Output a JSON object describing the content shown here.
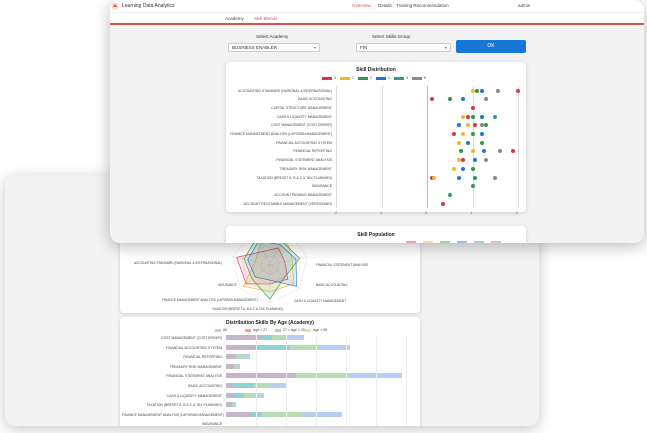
{
  "app": {
    "title": "Learning Data Analytics",
    "user": "admin"
  },
  "nav": [
    {
      "label": "Overview",
      "active": true
    },
    {
      "label": "Details",
      "active": false
    },
    {
      "label": "Training Recommendation",
      "active": false
    }
  ],
  "tabs": [
    {
      "label": "Academy",
      "active": false
    },
    {
      "label": "Skill Blends",
      "active": true
    }
  ],
  "filters": {
    "academy_label": "Select Academy",
    "academy_value": "BUSINESS ENABLER",
    "skills_group_label": "Select Skills Group",
    "skills_group_value": "FIN",
    "ok_label": "OK"
  },
  "skill_distribution": {
    "chart_data": {
      "type": "scatter",
      "title": "Skill Distribution",
      "legend": [
        "0",
        "1",
        "2",
        "3",
        "4",
        "5"
      ],
      "series_colors": [
        "#d9354a",
        "#f1b827",
        "#2e9a49",
        "#1f77c9",
        "#2a9d8f",
        "#8a8a8a"
      ],
      "x_ticks": [
        "-2",
        "-1",
        "0",
        "1",
        "2"
      ],
      "xlim": [
        -2,
        2
      ],
      "categories": [
        "ACCOUNTING STANDARD (NASIONAL & INTERNASIONAL)",
        "BASIC ACCOUNTING",
        "CAPITAL STRUCTURE MANAGEMENT",
        "CASH & LIQUIDITY MANAGEMENT",
        "COST MANAGEMENT (COST DRIVER)",
        "FINANCE MANAGEMENT ANALYSIS (LAPORAN MANAGEMENT)",
        "FINANCIAL ACCOUNTING SYSTEM",
        "FINANCIAL REPORTING",
        "FINANCIAL STATEMENT ANALYSIS",
        "TREASURY RISK MANAGEMENT",
        "TAXATION (BREVET A, B & C & TAX PLANNING)",
        "INSURANCE",
        "ACCOUNT PAYABLE MANAGEMENT",
        "ACCOUNT RECEIVABLE MANAGEMENT (VERSIONING)"
      ],
      "points": [
        {
          "row": 0,
          "x": 1.0,
          "s": 1
        },
        {
          "row": 0,
          "x": 1.1,
          "s": 2
        },
        {
          "row": 0,
          "x": 1.2,
          "s": 3
        },
        {
          "row": 0,
          "x": 1.55,
          "s": 5
        },
        {
          "row": 0,
          "x": 2.0,
          "s": 0
        },
        {
          "row": 1,
          "x": 0.1,
          "s": 0
        },
        {
          "row": 1,
          "x": 0.5,
          "s": 2
        },
        {
          "row": 1,
          "x": 0.8,
          "s": 3
        },
        {
          "row": 1,
          "x": 1.3,
          "s": 5
        },
        {
          "row": 2,
          "x": 1.0,
          "s": 0
        },
        {
          "row": 3,
          "x": 0.8,
          "s": 1
        },
        {
          "row": 3,
          "x": 0.9,
          "s": 0
        },
        {
          "row": 3,
          "x": 1.0,
          "s": 2
        },
        {
          "row": 3,
          "x": 1.2,
          "s": 3
        },
        {
          "row": 3,
          "x": 1.5,
          "s": 4
        },
        {
          "row": 4,
          "x": 0.7,
          "s": 3
        },
        {
          "row": 4,
          "x": 0.9,
          "s": 1
        },
        {
          "row": 4,
          "x": 1.05,
          "s": 0
        },
        {
          "row": 4,
          "x": 1.2,
          "s": 5
        },
        {
          "row": 4,
          "x": 1.3,
          "s": 2
        },
        {
          "row": 5,
          "x": 0.6,
          "s": 0
        },
        {
          "row": 5,
          "x": 0.8,
          "s": 1
        },
        {
          "row": 5,
          "x": 1.0,
          "s": 2
        },
        {
          "row": 5,
          "x": 1.2,
          "s": 3
        },
        {
          "row": 6,
          "x": 0.7,
          "s": 1
        },
        {
          "row": 6,
          "x": 0.9,
          "s": 3
        },
        {
          "row": 6,
          "x": 1.2,
          "s": 2
        },
        {
          "row": 7,
          "x": 0.75,
          "s": 2
        },
        {
          "row": 7,
          "x": 1.0,
          "s": 1
        },
        {
          "row": 7,
          "x": 1.25,
          "s": 3
        },
        {
          "row": 7,
          "x": 1.6,
          "s": 5
        },
        {
          "row": 7,
          "x": 1.9,
          "s": 0
        },
        {
          "row": 8,
          "x": 0.7,
          "s": 1
        },
        {
          "row": 8,
          "x": 0.8,
          "s": 0
        },
        {
          "row": 8,
          "x": 1.05,
          "s": 3
        },
        {
          "row": 8,
          "x": 1.3,
          "s": 5
        },
        {
          "row": 9,
          "x": 0.6,
          "s": 1
        },
        {
          "row": 9,
          "x": 0.8,
          "s": 3
        },
        {
          "row": 9,
          "x": 1.0,
          "s": 2
        },
        {
          "row": 10,
          "x": 0.1,
          "s": 0
        },
        {
          "row": 10,
          "x": 0.15,
          "s": 1
        },
        {
          "row": 10,
          "x": 0.7,
          "s": 3
        },
        {
          "row": 10,
          "x": 1.05,
          "s": 2
        },
        {
          "row": 10,
          "x": 1.5,
          "s": 5
        },
        {
          "row": 11,
          "x": 1.0,
          "s": 2
        },
        {
          "row": 12,
          "x": 0.5,
          "s": 4
        },
        {
          "row": 13,
          "x": 0.35,
          "s": 0
        }
      ]
    }
  },
  "skill_population": {
    "title": "Skill Population",
    "legend": [
      "",
      "",
      "",
      "",
      "",
      ""
    ],
    "radar_labels": [
      "ACCOUNTING STANDARD (NASIONAL & INTERNASIONAL)",
      "FINANCIAL STATEMENT ANALYSIS",
      "BASIC ACCOUNTING",
      "CASH & LIQUIDITY MANAGEMENT",
      "FINANCE MANAGEMENT ANALYSIS (LAPORAN MANAGEMENT)",
      "INSURANCE",
      "TAXATION (BREVET A, B & C & TAX PLANNING)"
    ]
  },
  "distribution_age": {
    "chart_data": {
      "type": "bar",
      "title": "Distribution Skills By Age (Academy)",
      "legend": [
        "All",
        "Age < 27",
        "27 < Age < 45",
        "Age > 45"
      ],
      "series_colors": [
        "#b7cff0",
        "#f4a58a",
        "#a9d8a3",
        "#f5e08a"
      ],
      "categories": [
        "COST MANAGEMENT (COST DRIVER)",
        "FINANCIAL ACCOUNTING SYSTEM",
        "FINANCIAL REPORTING",
        "TREASURY RISK MANAGEMENT",
        "FINANCIAL STATEMENT ANALYSIS",
        "BASIC ACCOUNTING",
        "CASH & LIQUIDITY MANAGEMENT",
        "TAXATION (BREVET A, B & C & TAX PLANNING)",
        "FINANCE MANAGEMENT ANALYSIS (LAPORAN MANAGEMENT)",
        "INSURANCE"
      ],
      "values": [
        [
          36,
          10,
          32,
          0
        ],
        [
          32,
          32,
          60,
          0
        ],
        [
          10,
          0,
          14,
          0
        ],
        [
          8,
          0,
          6,
          0
        ],
        [
          70,
          0,
          106,
          0
        ],
        [
          8,
          20,
          32,
          0
        ],
        [
          8,
          10,
          20,
          0
        ],
        [
          6,
          0,
          4,
          0
        ],
        [
          26,
          10,
          80,
          0
        ],
        [
          0,
          0,
          0,
          0
        ]
      ]
    }
  }
}
